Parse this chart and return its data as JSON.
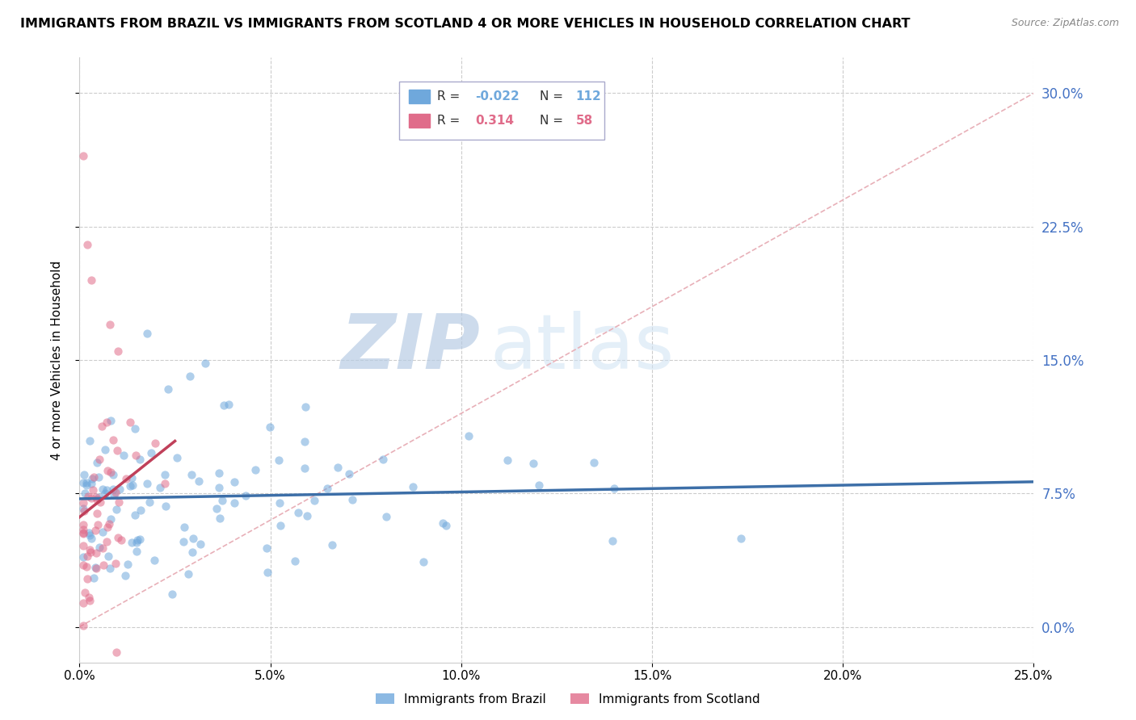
{
  "title": "IMMIGRANTS FROM BRAZIL VS IMMIGRANTS FROM SCOTLAND 4 OR MORE VEHICLES IN HOUSEHOLD CORRELATION CHART",
  "source": "Source: ZipAtlas.com",
  "ylabel": "4 or more Vehicles in Household",
  "xlim": [
    0.0,
    0.25
  ],
  "ylim": [
    -0.02,
    0.32
  ],
  "xtick_vals": [
    0.0,
    0.05,
    0.1,
    0.15,
    0.2,
    0.25
  ],
  "xticklabels": [
    "0.0%",
    "5.0%",
    "10.0%",
    "15.0%",
    "20.0%",
    "25.0%"
  ],
  "ytick_vals": [
    0.0,
    0.075,
    0.15,
    0.225,
    0.3
  ],
  "yticklabels": [
    "0.0%",
    "7.5%",
    "15.0%",
    "22.5%",
    "30.0%"
  ],
  "brazil_color": "#6fa8dc",
  "scotland_color": "#e06c8a",
  "brazil_R": -0.022,
  "brazil_N": 112,
  "scotland_R": 0.314,
  "scotland_N": 58,
  "watermark_zip": "ZIP",
  "watermark_atlas": "atlas",
  "diag_color": "#e8a0a8",
  "trend_brazil_color": "#3d6fa8",
  "trend_scotland_color": "#c0405a",
  "legend_box_color": "#c8d8f0",
  "scatter_brazil_alpha": 0.55,
  "scatter_scotland_alpha": 0.55,
  "scatter_size": 55
}
